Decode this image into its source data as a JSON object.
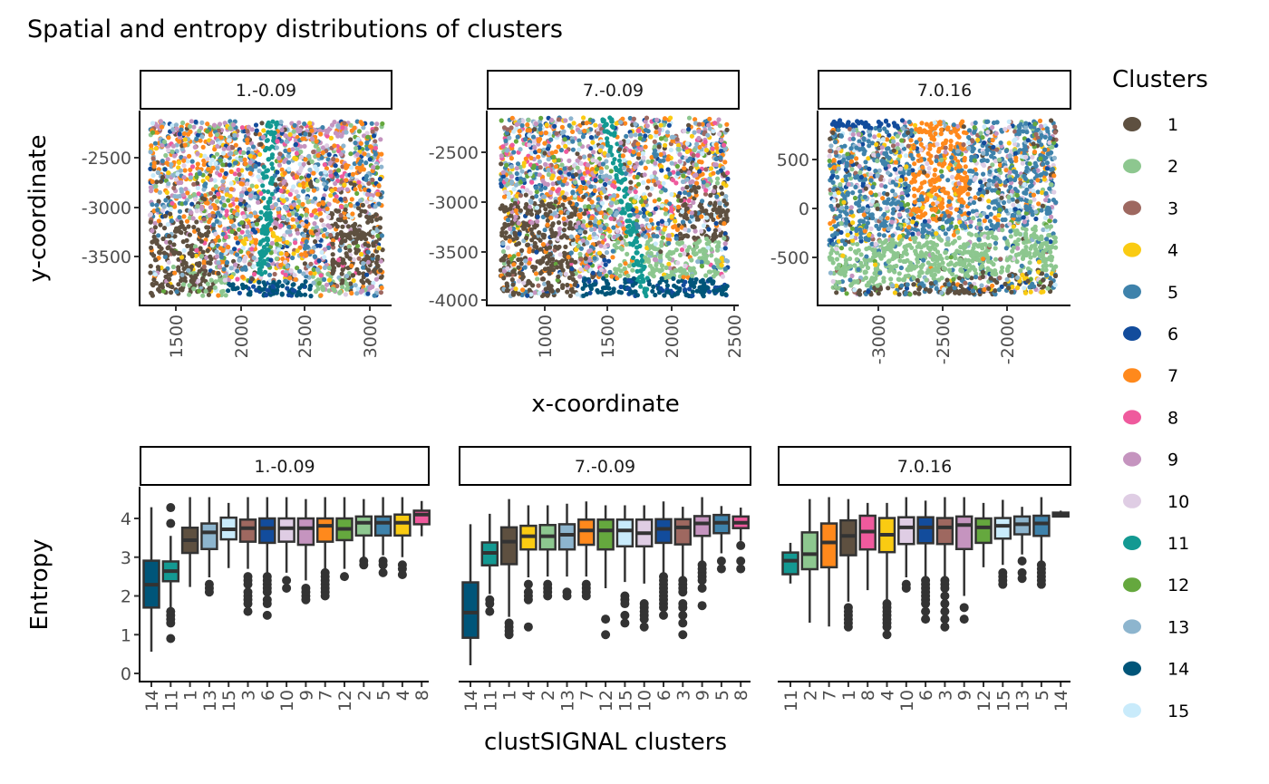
{
  "title": "Spatial and entropy distributions of clusters",
  "legend": {
    "title": "Clusters",
    "items": [
      "1",
      "2",
      "3",
      "4",
      "5",
      "6",
      "7",
      "8",
      "9",
      "10",
      "11",
      "12",
      "13",
      "14",
      "15"
    ],
    "colors": [
      "#5E5040",
      "#8DC78F",
      "#9E6860",
      "#FACB12",
      "#3E82AB",
      "#124C9C",
      "#FF891C",
      "#EF5A9D",
      "#C594BF",
      "#DFCDE4",
      "#139992",
      "#65A83E",
      "#8DB5CE",
      "#005579",
      "#C9EBFB"
    ]
  },
  "chart_data": [
    {
      "type": "scatter",
      "strip": "1.-0.09",
      "xlabel": "x-coordinate",
      "ylabel": "y-coordinate",
      "x_ticks": [
        "1500",
        "2000",
        "2500",
        "3000"
      ],
      "y_ticks": [
        "-2500",
        "-3000",
        "-3500"
      ],
      "xlim": [
        1300,
        3100
      ],
      "ylim": [
        -3900,
        -2130
      ],
      "grid": false
    },
    {
      "type": "scatter",
      "strip": "7.-0.09",
      "x_ticks": [
        "1000",
        "1500",
        "2000",
        "2500"
      ],
      "y_ticks": [
        "-2500",
        "-3000",
        "-3500",
        "-4000"
      ],
      "xlim": [
        650,
        2450
      ],
      "ylim": [
        -3960,
        -2150
      ],
      "grid": false
    },
    {
      "type": "scatter",
      "strip": "7.0.16",
      "x_ticks": [
        "-3000",
        "-2500",
        "-2000"
      ],
      "y_ticks": [
        "500",
        "0",
        "-500"
      ],
      "xlim": [
        -3380,
        -1620
      ],
      "ylim": [
        -880,
        900
      ],
      "grid": false
    },
    {
      "type": "box",
      "strip": "1.-0.09",
      "ylabel": "Entropy",
      "xlabel": "clustSIGNAL clusters",
      "y_ticks": [
        "0",
        "1",
        "2",
        "3",
        "4"
      ],
      "ylim": [
        0,
        4.6
      ],
      "categories": [
        "14",
        "11",
        "1",
        "13",
        "15",
        "3",
        "6",
        "10",
        "9",
        "7",
        "12",
        "2",
        "5",
        "4",
        "8"
      ],
      "boxes": [
        {
          "lo": 0.56,
          "q1": 1.7,
          "med": 2.29,
          "q3": 2.91,
          "hi": 4.29,
          "out": []
        },
        {
          "lo": 1.7,
          "q1": 2.38,
          "med": 2.64,
          "q3": 2.89,
          "hi": 3.55,
          "out": [
            4.28,
            3.87,
            1.6,
            1.5,
            1.4,
            1.3,
            0.9
          ]
        },
        {
          "lo": 2.23,
          "q1": 3.11,
          "med": 3.44,
          "q3": 3.76,
          "hi": 4.55,
          "out": []
        },
        {
          "lo": 2.48,
          "q1": 3.21,
          "med": 3.64,
          "q3": 3.87,
          "hi": 4.55,
          "out": [
            2.3,
            2.2,
            2.1
          ]
        },
        {
          "lo": 2.72,
          "q1": 3.46,
          "med": 3.72,
          "q3": 4.02,
          "hi": 4.4,
          "out": []
        },
        {
          "lo": 2.7,
          "q1": 3.4,
          "med": 3.75,
          "q3": 3.97,
          "hi": 4.55,
          "out": [
            2.5,
            2.4,
            2.3,
            2.1,
            2.0,
            1.9,
            1.8,
            1.6
          ]
        },
        {
          "lo": 2.6,
          "q1": 3.37,
          "med": 3.75,
          "q3": 4.0,
          "hi": 4.55,
          "out": [
            2.5,
            2.4,
            2.3,
            2.2,
            2.1,
            1.9,
            1.8,
            1.5
          ]
        },
        {
          "lo": 2.6,
          "q1": 3.4,
          "med": 3.75,
          "q3": 4.0,
          "hi": 4.55,
          "out": [
            2.4,
            2.2
          ]
        },
        {
          "lo": 2.4,
          "q1": 3.32,
          "med": 3.75,
          "q3": 4.0,
          "hi": 4.5,
          "out": [
            2.2,
            2.1,
            2.0,
            1.9
          ]
        },
        {
          "lo": 2.7,
          "q1": 3.4,
          "med": 3.81,
          "q3": 4.0,
          "hi": 4.55,
          "out": [
            2.6,
            2.5,
            2.4,
            2.3,
            2.2,
            2.1,
            2.0
          ]
        },
        {
          "lo": 2.7,
          "q1": 3.44,
          "med": 3.73,
          "q3": 4.0,
          "hi": 4.55,
          "out": [
            2.5
          ]
        },
        {
          "lo": 3.0,
          "q1": 3.56,
          "med": 3.89,
          "q3": 4.05,
          "hi": 4.5,
          "out": [
            2.9,
            2.8
          ]
        },
        {
          "lo": 3.05,
          "q1": 3.56,
          "med": 3.89,
          "q3": 4.05,
          "hi": 4.55,
          "out": [
            2.9,
            2.8,
            2.6
          ]
        },
        {
          "lo": 3.0,
          "q1": 3.56,
          "med": 3.89,
          "q3": 4.1,
          "hi": 4.55,
          "out": [
            2.8,
            2.7,
            2.55
          ]
        },
        {
          "lo": 3.54,
          "q1": 3.85,
          "med": 4.1,
          "q3": 4.2,
          "hi": 4.45,
          "out": []
        }
      ]
    },
    {
      "type": "box",
      "strip": "7.-0.09",
      "categories": [
        "14",
        "11",
        "1",
        "4",
        "2",
        "13",
        "7",
        "12",
        "15",
        "10",
        "6",
        "3",
        "9",
        "5",
        "8"
      ],
      "boxes": [
        {
          "lo": 0.21,
          "q1": 0.92,
          "med": 1.57,
          "q3": 2.35,
          "hi": 3.85,
          "out": []
        },
        {
          "lo": 2.05,
          "q1": 2.79,
          "med": 3.11,
          "q3": 3.38,
          "hi": 4.12,
          "out": [
            1.9,
            1.8,
            1.6
          ]
        },
        {
          "lo": 1.46,
          "q1": 2.82,
          "med": 3.4,
          "q3": 3.77,
          "hi": 4.5,
          "out": [
            1.3,
            1.2,
            1.1,
            1.0
          ]
        },
        {
          "lo": 2.48,
          "q1": 3.2,
          "med": 3.54,
          "q3": 3.81,
          "hi": 4.34,
          "out": [
            2.3,
            2.1,
            2.0,
            1.9,
            1.2
          ]
        },
        {
          "lo": 2.5,
          "q1": 3.2,
          "med": 3.54,
          "q3": 3.83,
          "hi": 4.34,
          "out": [
            2.3,
            2.2,
            2.1,
            2.0
          ]
        },
        {
          "lo": 2.5,
          "q1": 3.2,
          "med": 3.58,
          "q3": 3.85,
          "hi": 4.38,
          "out": [
            2.1,
            2.0
          ]
        },
        {
          "lo": 2.5,
          "q1": 3.32,
          "med": 3.69,
          "q3": 3.97,
          "hi": 4.44,
          "out": [
            2.3,
            2.2,
            2.1,
            2.0
          ]
        },
        {
          "lo": 2.2,
          "q1": 3.2,
          "med": 3.69,
          "q3": 3.97,
          "hi": 4.34,
          "out": [
            1.4,
            1.0
          ]
        },
        {
          "lo": 2.36,
          "q1": 3.28,
          "med": 3.69,
          "q3": 3.97,
          "hi": 4.34,
          "out": [
            2.0,
            1.9,
            1.8,
            1.5,
            1.3
          ]
        },
        {
          "lo": 2.32,
          "q1": 3.28,
          "med": 3.62,
          "q3": 3.97,
          "hi": 4.34,
          "out": [
            1.8,
            1.7,
            1.6,
            1.5,
            1.4,
            1.2
          ]
        },
        {
          "lo": 2.6,
          "q1": 3.37,
          "med": 3.73,
          "q3": 3.98,
          "hi": 4.44,
          "out": [
            2.5,
            2.4,
            2.3,
            2.2,
            2.1,
            2.0,
            1.9,
            1.8,
            1.7,
            1.5
          ]
        },
        {
          "lo": 2.5,
          "q1": 3.33,
          "med": 3.77,
          "q3": 3.98,
          "hi": 4.3,
          "out": [
            2.4,
            2.3,
            2.2,
            2.1,
            1.8,
            1.7,
            1.5,
            1.3,
            1.0
          ]
        },
        {
          "lo": 2.87,
          "q1": 3.55,
          "med": 3.87,
          "q3": 4.06,
          "hi": 4.55,
          "out": [
            2.8,
            2.7,
            2.6,
            2.5,
            2.4,
            2.2,
            1.75
          ]
        },
        {
          "lo": 3.1,
          "q1": 3.62,
          "med": 3.89,
          "q3": 4.09,
          "hi": 4.32,
          "out": [
            2.9,
            2.7
          ]
        },
        {
          "lo": 3.42,
          "q1": 3.75,
          "med": 3.89,
          "q3": 4.05,
          "hi": 4.28,
          "out": [
            3.3,
            2.9,
            2.7
          ]
        }
      ]
    },
    {
      "type": "box",
      "strip": "7.0.16",
      "categories": [
        "11",
        "2",
        "7",
        "1",
        "8",
        "4",
        "10",
        "6",
        "3",
        "9",
        "12",
        "15",
        "13",
        "5",
        "14"
      ],
      "boxes": [
        {
          "lo": 2.32,
          "q1": 2.56,
          "med": 2.91,
          "q3": 3.12,
          "hi": 3.37,
          "out": []
        },
        {
          "lo": 1.31,
          "q1": 2.69,
          "med": 3.08,
          "q3": 3.64,
          "hi": 4.5,
          "out": []
        },
        {
          "lo": 1.21,
          "q1": 2.74,
          "med": 3.38,
          "q3": 3.87,
          "hi": 4.55,
          "out": []
        },
        {
          "lo": 1.85,
          "q1": 3.05,
          "med": 3.55,
          "q3": 3.95,
          "hi": 4.5,
          "out": [
            1.7,
            1.6,
            1.5,
            1.4,
            1.3,
            1.2
          ]
        },
        {
          "lo": 2.15,
          "q1": 3.2,
          "med": 3.66,
          "q3": 4.07,
          "hi": 4.4,
          "out": []
        },
        {
          "lo": 1.9,
          "q1": 3.13,
          "med": 3.58,
          "q3": 4.01,
          "hi": 4.4,
          "out": [
            1.8,
            1.7,
            1.6,
            1.5,
            1.4,
            1.3,
            1.2,
            1.0
          ]
        },
        {
          "lo": 2.48,
          "q1": 3.34,
          "med": 3.77,
          "q3": 4.03,
          "hi": 4.55,
          "out": [
            2.3,
            2.2
          ]
        },
        {
          "lo": 2.5,
          "q1": 3.36,
          "med": 3.77,
          "q3": 4.03,
          "hi": 4.46,
          "out": [
            2.4,
            2.3,
            2.2,
            2.1,
            2.0,
            1.9,
            1.8,
            1.6,
            1.4
          ]
        },
        {
          "lo": 2.5,
          "q1": 3.34,
          "med": 3.77,
          "q3": 4.01,
          "hi": 4.55,
          "out": [
            2.4,
            2.3,
            2.2,
            2.0,
            1.8,
            1.6,
            1.4,
            1.2
          ]
        },
        {
          "lo": 2.0,
          "q1": 3.21,
          "med": 3.83,
          "q3": 4.05,
          "hi": 4.55,
          "out": [
            1.7,
            1.4
          ]
        },
        {
          "lo": 2.74,
          "q1": 3.37,
          "med": 3.77,
          "q3": 4.0,
          "hi": 4.4,
          "out": []
        },
        {
          "lo": 2.8,
          "q1": 3.48,
          "med": 3.81,
          "q3": 4.01,
          "hi": 4.48,
          "out": [
            2.6,
            2.5,
            2.4,
            2.3
          ]
        },
        {
          "lo": 3.07,
          "q1": 3.59,
          "med": 3.85,
          "q3": 4.05,
          "hi": 4.3,
          "out": [
            2.9,
            2.6,
            2.45
          ]
        },
        {
          "lo": 2.91,
          "q1": 3.55,
          "med": 3.87,
          "q3": 4.07,
          "hi": 4.55,
          "out": [
            2.8,
            2.7,
            2.6,
            2.5,
            2.4,
            2.3
          ]
        },
        {
          "lo": 4.05,
          "q1": 4.05,
          "med": 4.1,
          "q3": 4.15,
          "hi": 4.2,
          "out": []
        }
      ]
    }
  ]
}
